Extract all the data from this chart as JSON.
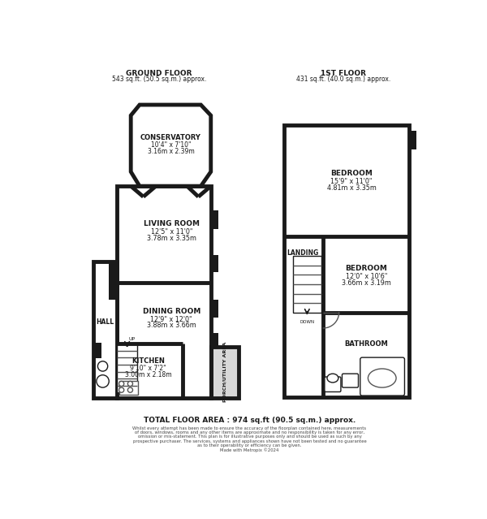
{
  "bg_color": "#ffffff",
  "wall_color": "#1a1a1a",
  "wall_lw": 3.5,
  "thin_lw": 1.0,
  "light_fill": "#d8d8d8",
  "header": {
    "gf_title": "GROUND FLOOR",
    "gf_sub": "543 sq.ft. (50.5 sq.m.) approx.",
    "ff_title": "1ST FLOOR",
    "ff_sub": "431 sq.ft. (40.0 sq.m.) approx."
  },
  "footer": {
    "total": "TOTAL FLOOR AREA : 974 sq.ft (90.5 sq.m.) approx.",
    "disclaimer_line1": "Whilst every attempt has been made to ensure the accuracy of the floorplan contained here, measurements",
    "disclaimer_line2": "of doors, windows, rooms and any other items are approximate and no responsibility is taken for any error,",
    "disclaimer_line3": "omission or mis-statement. This plan is for illustrative purposes only and should be used as such by any",
    "disclaimer_line4": "prospective purchaser. The services, systems and appliances shown have not been tested and no guarantee",
    "disclaimer_line5": "as to their operability or efficiency can be given.",
    "disclaimer_line6": "Made with Metropix ©2024"
  },
  "rooms": {
    "conservatory": {
      "label": "CONSERVATORY",
      "line1": "10'4\" x 7'10\"",
      "line2": "3.16m x 2.39m"
    },
    "living_room": {
      "label": "LIVING ROOM",
      "line1": "12'5\" x 11'0\"",
      "line2": "3.78m x 3.35m"
    },
    "hall": {
      "label": "HALL"
    },
    "dining_room": {
      "label": "DINING ROOM",
      "line1": "12'9\" x 12'0\"",
      "line2": "3.88m x 3.66m"
    },
    "kitchen": {
      "label": "KITCHEN",
      "line1": "9'10\" x 7'2\"",
      "line2": "3.00m x 2.18m"
    },
    "porch": {
      "label": "PORCH/UTILITY AREA"
    },
    "bedroom1": {
      "label": "BEDROOM",
      "line1": "15'9\" x 11'0\"",
      "line2": "4.81m x 3.35m"
    },
    "landing": {
      "label": "LANDING"
    },
    "bedroom2": {
      "label": "BEDROOM",
      "line1": "12'0\" x 10'6\"",
      "line2": "3.66m x 3.19m"
    },
    "bathroom": {
      "label": "BATHROOM"
    }
  }
}
